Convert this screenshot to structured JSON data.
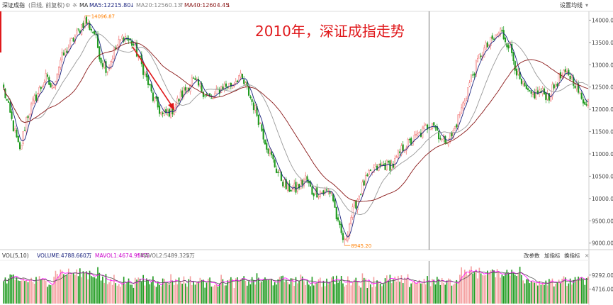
{
  "header": {
    "index_name": "深证成指",
    "period": "(日线, 前复权)",
    "ma_label": "MA",
    "ma5": "MA5:12215.80",
    "ma20": "MA20:12560.13",
    "ma40": "MA40:12604.45",
    "settings_label": "设置均线"
  },
  "volume_header": {
    "label": "VOL(5,10)",
    "volume": "VOLUME:4788.660万",
    "mavol1": "MAVOL1:4674.954万",
    "mavol2": "MAVOL2:5489.325万",
    "btn_params": "改参数",
    "btn_add": "加指标",
    "btn_switch": "换指标"
  },
  "overlay_text": "2010年，深证成指走势",
  "annotations": {
    "high": "14096.87",
    "low": "8945.20"
  },
  "colors": {
    "up": "#f06a6a",
    "up_body": "#f4a0a0",
    "down": "#1e9a1e",
    "ma5": "#1a237e",
    "ma20": "#999999",
    "ma40": "#8b1a1a",
    "vol_ma1": "#ff00ff",
    "vol_ma2": "#555555",
    "arrow": "#e0191c",
    "title": "#e0191c"
  },
  "chart_data": [
    {
      "type": "candlestick",
      "title": "",
      "y_ticks": [
        "14000.00",
        "13500.00",
        "13000.00",
        "12500.00",
        "12000.00",
        "11500.00",
        "11000.00",
        "10500.00",
        "10000.00",
        "9500.00",
        "9000.00"
      ],
      "ylim": [
        8900,
        14150
      ],
      "anchor_closes": [
        [
          0,
          12450
        ],
        [
          6,
          11600
        ],
        [
          10,
          11050
        ],
        [
          14,
          11800
        ],
        [
          20,
          12300
        ],
        [
          26,
          12700
        ],
        [
          30,
          12450
        ],
        [
          35,
          13100
        ],
        [
          40,
          13400
        ],
        [
          46,
          13750
        ],
        [
          50,
          14000
        ],
        [
          56,
          13700
        ],
        [
          60,
          13100
        ],
        [
          64,
          12900
        ],
        [
          68,
          13300
        ],
        [
          74,
          13650
        ],
        [
          80,
          13450
        ],
        [
          86,
          12900
        ],
        [
          92,
          12250
        ],
        [
          98,
          11850
        ],
        [
          104,
          12000
        ],
        [
          110,
          12350
        ],
        [
          116,
          12650
        ],
        [
          122,
          12450
        ],
        [
          128,
          12200
        ],
        [
          134,
          12500
        ],
        [
          140,
          12550
        ],
        [
          145,
          12750
        ],
        [
          150,
          12450
        ],
        [
          156,
          11900
        ],
        [
          162,
          11200
        ],
        [
          168,
          10650
        ],
        [
          174,
          10250
        ],
        [
          180,
          10200
        ],
        [
          186,
          10450
        ],
        [
          190,
          10150
        ],
        [
          196,
          10150
        ],
        [
          202,
          10150
        ],
        [
          206,
          9400
        ],
        [
          210,
          9000
        ],
        [
          214,
          9600
        ],
        [
          218,
          10000
        ],
        [
          222,
          10350
        ],
        [
          228,
          10650
        ],
        [
          234,
          10750
        ],
        [
          240,
          10750
        ],
        [
          246,
          11150
        ],
        [
          252,
          11300
        ],
        [
          258,
          11500
        ],
        [
          264,
          11750
        ],
        [
          270,
          11300
        ],
        [
          276,
          11400
        ],
        [
          282,
          12000
        ],
        [
          288,
          12700
        ],
        [
          294,
          13250
        ],
        [
          300,
          13500
        ],
        [
          306,
          13750
        ],
        [
          312,
          13400
        ],
        [
          318,
          12600
        ],
        [
          324,
          12300
        ],
        [
          330,
          12400
        ],
        [
          336,
          12300
        ],
        [
          342,
          12700
        ],
        [
          348,
          12800
        ],
        [
          352,
          12600
        ],
        [
          356,
          12200
        ],
        [
          360,
          12200
        ]
      ],
      "ma_periods": [
        5,
        20,
        40
      ],
      "high": 14096.87,
      "low": 8945.2
    },
    {
      "type": "bar",
      "title": "VOL(5,10)",
      "y_ticks": [
        "9292.00",
        "4716.00"
      ],
      "ylim": [
        0,
        13868
      ],
      "volume": 4788.66,
      "mavol1": 4674.954,
      "mavol2": 5489.325
    }
  ]
}
